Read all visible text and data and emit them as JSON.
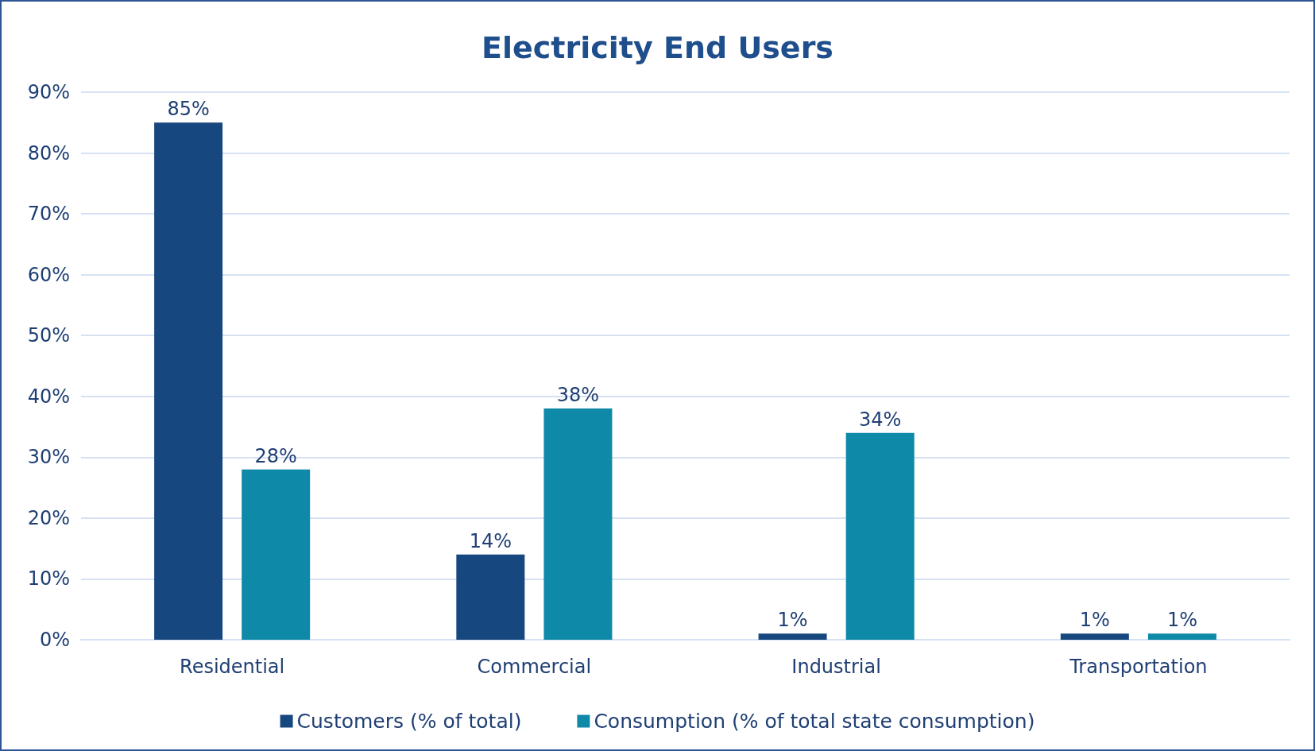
{
  "chart_data": {
    "type": "bar",
    "title": "Electricity End Users",
    "categories": [
      "Residential",
      "Commercial",
      "Industrial",
      "Transportation"
    ],
    "series": [
      {
        "name": "Customers (% of total)",
        "color": "#17477f",
        "values": [
          85,
          14,
          1,
          1
        ],
        "value_labels": [
          "85%",
          "14%",
          "1%",
          "1%"
        ]
      },
      {
        "name": "Consumption (% of total state consumption)",
        "color": "#0e89a8",
        "values": [
          28,
          38,
          34,
          1
        ],
        "value_labels": [
          "28%",
          "38%",
          "34%",
          "1%"
        ]
      }
    ],
    "ylim": [
      0,
      90
    ],
    "yticks": [
      {
        "value": 0,
        "label": "0%"
      },
      {
        "value": 10,
        "label": "10%"
      },
      {
        "value": 20,
        "label": "20%"
      },
      {
        "value": 30,
        "label": "30%"
      },
      {
        "value": 40,
        "label": "40%"
      },
      {
        "value": 50,
        "label": "50%"
      },
      {
        "value": 60,
        "label": "60%"
      },
      {
        "value": 70,
        "label": "70%"
      },
      {
        "value": 80,
        "label": "80%"
      },
      {
        "value": 90,
        "label": "90%"
      }
    ],
    "grid": "y",
    "legend": "bottom"
  }
}
